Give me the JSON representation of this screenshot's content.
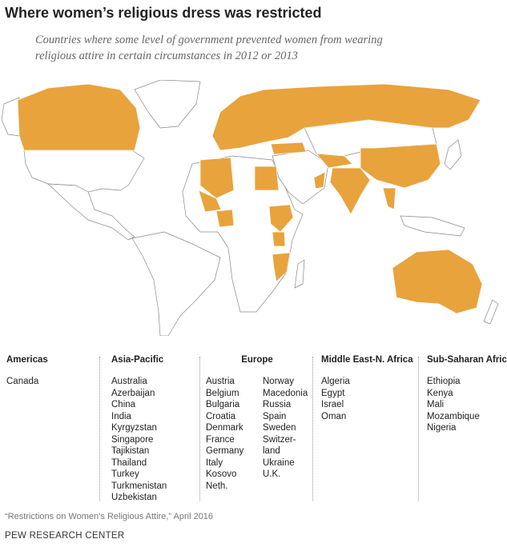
{
  "title": "Where women’s religious dress was restricted",
  "subtitle": "Countries where some level of government prevented women from wearing religious attire in certain circumstances in 2012 or 2013",
  "regions": [
    {
      "name": "Americas",
      "countries": [
        "Canada"
      ]
    },
    {
      "name": "Asia-Pacific",
      "countries": [
        "Australia",
        "Azerbaijan",
        "China",
        "India",
        "Kyrgyzstan",
        "Singapore",
        "Tajikistan",
        "Thailand",
        "Turkey",
        "Turkmenistan",
        "Uzbekistan"
      ]
    },
    {
      "name": "Europe",
      "countries": [
        "Austria",
        "Belgium",
        "Bulgaria",
        "Croatia",
        "Denmark",
        "France",
        "Germany",
        "Italy",
        "Kosovo",
        "Neth.",
        "Norway",
        "Macedonia",
        "Russia",
        "Spain",
        "Sweden",
        "Switzer-\nland",
        "Ukraine",
        "U.K."
      ]
    },
    {
      "name": "Middle East-N. Africa",
      "countries": [
        "Algeria",
        "Egypt",
        "Israel",
        "Oman"
      ]
    },
    {
      "name": "Sub-Saharan Africa",
      "countries": [
        "Ethiopia",
        "Kenya",
        "Mali",
        "Mozambique",
        "Nigeria"
      ]
    }
  ],
  "source": "“Restrictions on Women’s Religious Attire,” April 2016",
  "footer": "PEW RESEARCH CENTER"
}
